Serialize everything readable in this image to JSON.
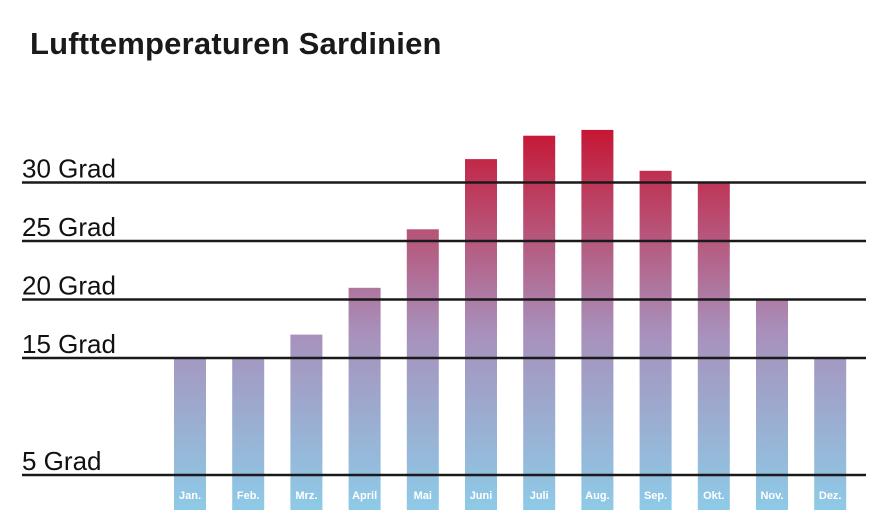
{
  "chart_data": {
    "type": "bar",
    "title": "Lufttemperaturen Sardinien",
    "xlabel": "",
    "ylabel": "",
    "categories": [
      "Jan.",
      "Feb.",
      "Mrz.",
      "April",
      "Mai",
      "Juni",
      "Juli",
      "Aug.",
      "Sep.",
      "Okt.",
      "Nov.",
      "Dez."
    ],
    "values": [
      15,
      15,
      17,
      21,
      26,
      32,
      34,
      34.5,
      31,
      30,
      20,
      15
    ],
    "y_ticks": [
      {
        "value": 5,
        "label": "5 Grad"
      },
      {
        "value": 15,
        "label": "15 Grad"
      },
      {
        "value": 20,
        "label": "20 Grad"
      },
      {
        "value": 25,
        "label": "25 Grad"
      },
      {
        "value": 30,
        "label": "30 Grad"
      }
    ],
    "ylim": [
      5,
      35
    ],
    "grid": true,
    "legend": "none",
    "colors": {
      "bar_bottom": "#8ec9e6",
      "bar_middle": "#a890bb",
      "bar_top": "#c8102e",
      "gridline": "#1a1a1a",
      "month_label": "#ffffff"
    }
  }
}
